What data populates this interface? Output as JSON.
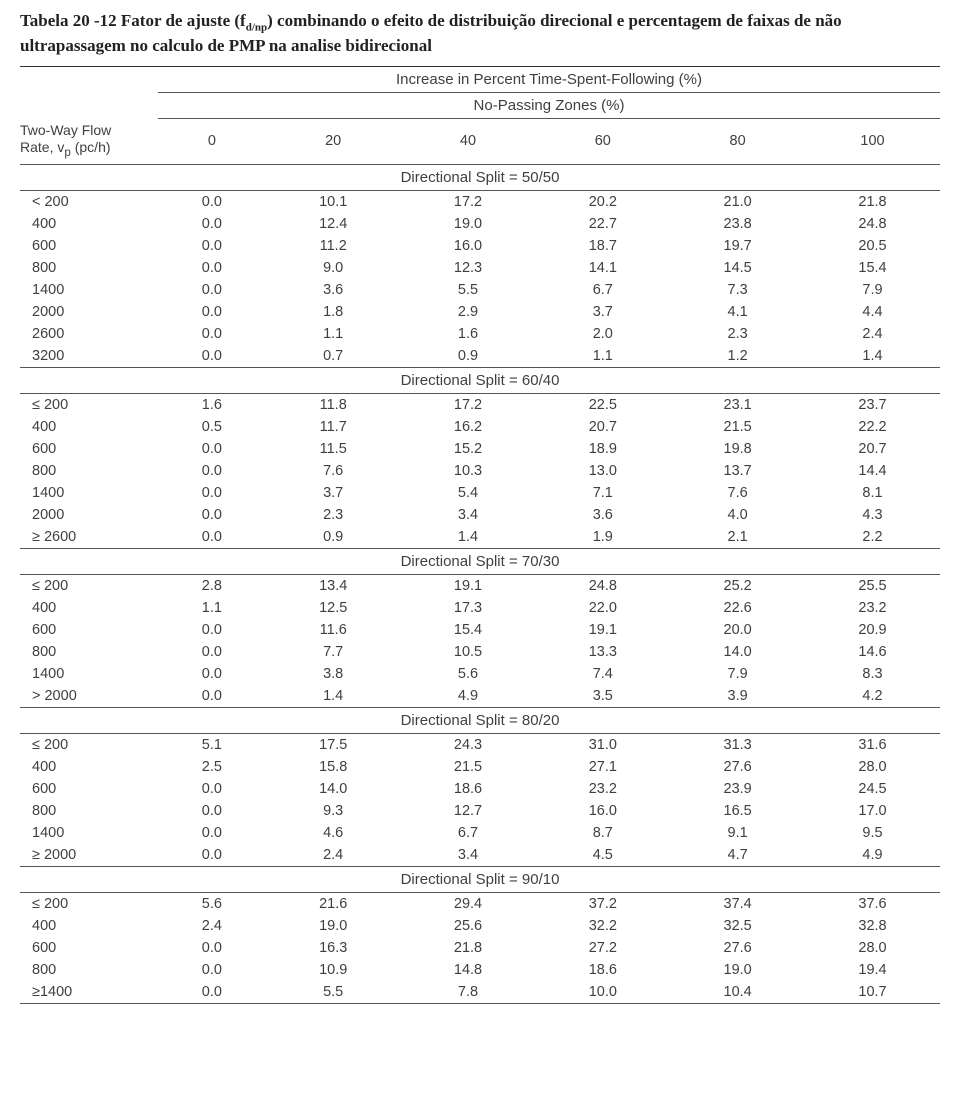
{
  "caption_html": "Tabela 20 -12 Fator de ajuste (f<sub>d/np</sub>) combinando o efeito de distribuição direcional e percentagem de faixas de não ultrapassagem no calculo de PMP na analise bidirecional",
  "header": {
    "spanner_main": "Increase in Percent Time-Spent-Following (%)",
    "spanner_sub": "No-Passing Zones (%)",
    "axis_line1": "Two-Way Flow",
    "axis_line2_html": "Rate, v<sub>p</sub> (pc/h)",
    "cols": [
      "0",
      "20",
      "40",
      "60",
      "80",
      "100"
    ]
  },
  "sections": [
    {
      "title": "Directional Split = 50/50",
      "rows": [
        {
          "label": "< 200",
          "vals": [
            "0.0",
            "10.1",
            "17.2",
            "20.2",
            "21.0",
            "21.8"
          ]
        },
        {
          "label": "400",
          "vals": [
            "0.0",
            "12.4",
            "19.0",
            "22.7",
            "23.8",
            "24.8"
          ]
        },
        {
          "label": "600",
          "vals": [
            "0.0",
            "11.2",
            "16.0",
            "18.7",
            "19.7",
            "20.5"
          ]
        },
        {
          "label": "800",
          "vals": [
            "0.0",
            "9.0",
            "12.3",
            "14.1",
            "14.5",
            "15.4"
          ]
        },
        {
          "label": "1400",
          "vals": [
            "0.0",
            "3.6",
            "5.5",
            "6.7",
            "7.3",
            "7.9"
          ]
        },
        {
          "label": "2000",
          "vals": [
            "0.0",
            "1.8",
            "2.9",
            "3.7",
            "4.1",
            "4.4"
          ]
        },
        {
          "label": "2600",
          "vals": [
            "0.0",
            "1.1",
            "1.6",
            "2.0",
            "2.3",
            "2.4"
          ]
        },
        {
          "label": "3200",
          "vals": [
            "0.0",
            "0.7",
            "0.9",
            "1.1",
            "1.2",
            "1.4"
          ]
        }
      ]
    },
    {
      "title": "Directional Split = 60/40",
      "rows": [
        {
          "label": "≤ 200",
          "vals": [
            "1.6",
            "11.8",
            "17.2",
            "22.5",
            "23.1",
            "23.7"
          ]
        },
        {
          "label": "400",
          "vals": [
            "0.5",
            "11.7",
            "16.2",
            "20.7",
            "21.5",
            "22.2"
          ]
        },
        {
          "label": "600",
          "vals": [
            "0.0",
            "11.5",
            "15.2",
            "18.9",
            "19.8",
            "20.7"
          ]
        },
        {
          "label": "800",
          "vals": [
            "0.0",
            "7.6",
            "10.3",
            "13.0",
            "13.7",
            "14.4"
          ]
        },
        {
          "label": "1400",
          "vals": [
            "0.0",
            "3.7",
            "5.4",
            "7.1",
            "7.6",
            "8.1"
          ]
        },
        {
          "label": "2000",
          "vals": [
            "0.0",
            "2.3",
            "3.4",
            "3.6",
            "4.0",
            "4.3"
          ]
        },
        {
          "label": "≥ 2600",
          "vals": [
            "0.0",
            "0.9",
            "1.4",
            "1.9",
            "2.1",
            "2.2"
          ]
        }
      ]
    },
    {
      "title": "Directional Split = 70/30",
      "rows": [
        {
          "label": "≤ 200",
          "vals": [
            "2.8",
            "13.4",
            "19.1",
            "24.8",
            "25.2",
            "25.5"
          ]
        },
        {
          "label": "400",
          "vals": [
            "1.1",
            "12.5",
            "17.3",
            "22.0",
            "22.6",
            "23.2"
          ]
        },
        {
          "label": "600",
          "vals": [
            "0.0",
            "11.6",
            "15.4",
            "19.1",
            "20.0",
            "20.9"
          ]
        },
        {
          "label": "800",
          "vals": [
            "0.0",
            "7.7",
            "10.5",
            "13.3",
            "14.0",
            "14.6"
          ]
        },
        {
          "label": "1400",
          "vals": [
            "0.0",
            "3.8",
            "5.6",
            "7.4",
            "7.9",
            "8.3"
          ]
        },
        {
          "label": "> 2000",
          "vals": [
            "0.0",
            "1.4",
            "4.9",
            "3.5",
            "3.9",
            "4.2"
          ]
        }
      ]
    },
    {
      "title": "Directional Split = 80/20",
      "rows": [
        {
          "label": "≤ 200",
          "vals": [
            "5.1",
            "17.5",
            "24.3",
            "31.0",
            "31.3",
            "31.6"
          ]
        },
        {
          "label": "400",
          "vals": [
            "2.5",
            "15.8",
            "21.5",
            "27.1",
            "27.6",
            "28.0"
          ]
        },
        {
          "label": "600",
          "vals": [
            "0.0",
            "14.0",
            "18.6",
            "23.2",
            "23.9",
            "24.5"
          ]
        },
        {
          "label": "800",
          "vals": [
            "0.0",
            "9.3",
            "12.7",
            "16.0",
            "16.5",
            "17.0"
          ]
        },
        {
          "label": "1400",
          "vals": [
            "0.0",
            "4.6",
            "6.7",
            "8.7",
            "9.1",
            "9.5"
          ]
        },
        {
          "label": "≥ 2000",
          "vals": [
            "0.0",
            "2.4",
            "3.4",
            "4.5",
            "4.7",
            "4.9"
          ]
        }
      ]
    },
    {
      "title": "Directional Split = 90/10",
      "rows": [
        {
          "label": "≤ 200",
          "vals": [
            "5.6",
            "21.6",
            "29.4",
            "37.2",
            "37.4",
            "37.6"
          ]
        },
        {
          "label": "400",
          "vals": [
            "2.4",
            "19.0",
            "25.6",
            "32.2",
            "32.5",
            "32.8"
          ]
        },
        {
          "label": "600",
          "vals": [
            "0.0",
            "16.3",
            "21.8",
            "27.2",
            "27.6",
            "28.0"
          ]
        },
        {
          "label": "800",
          "vals": [
            "0.0",
            "10.9",
            "14.8",
            "18.6",
            "19.0",
            "19.4"
          ]
        },
        {
          "label": "≥1400",
          "vals": [
            "0.0",
            "5.5",
            "7.8",
            "10.0",
            "10.4",
            "10.7"
          ]
        }
      ]
    }
  ]
}
